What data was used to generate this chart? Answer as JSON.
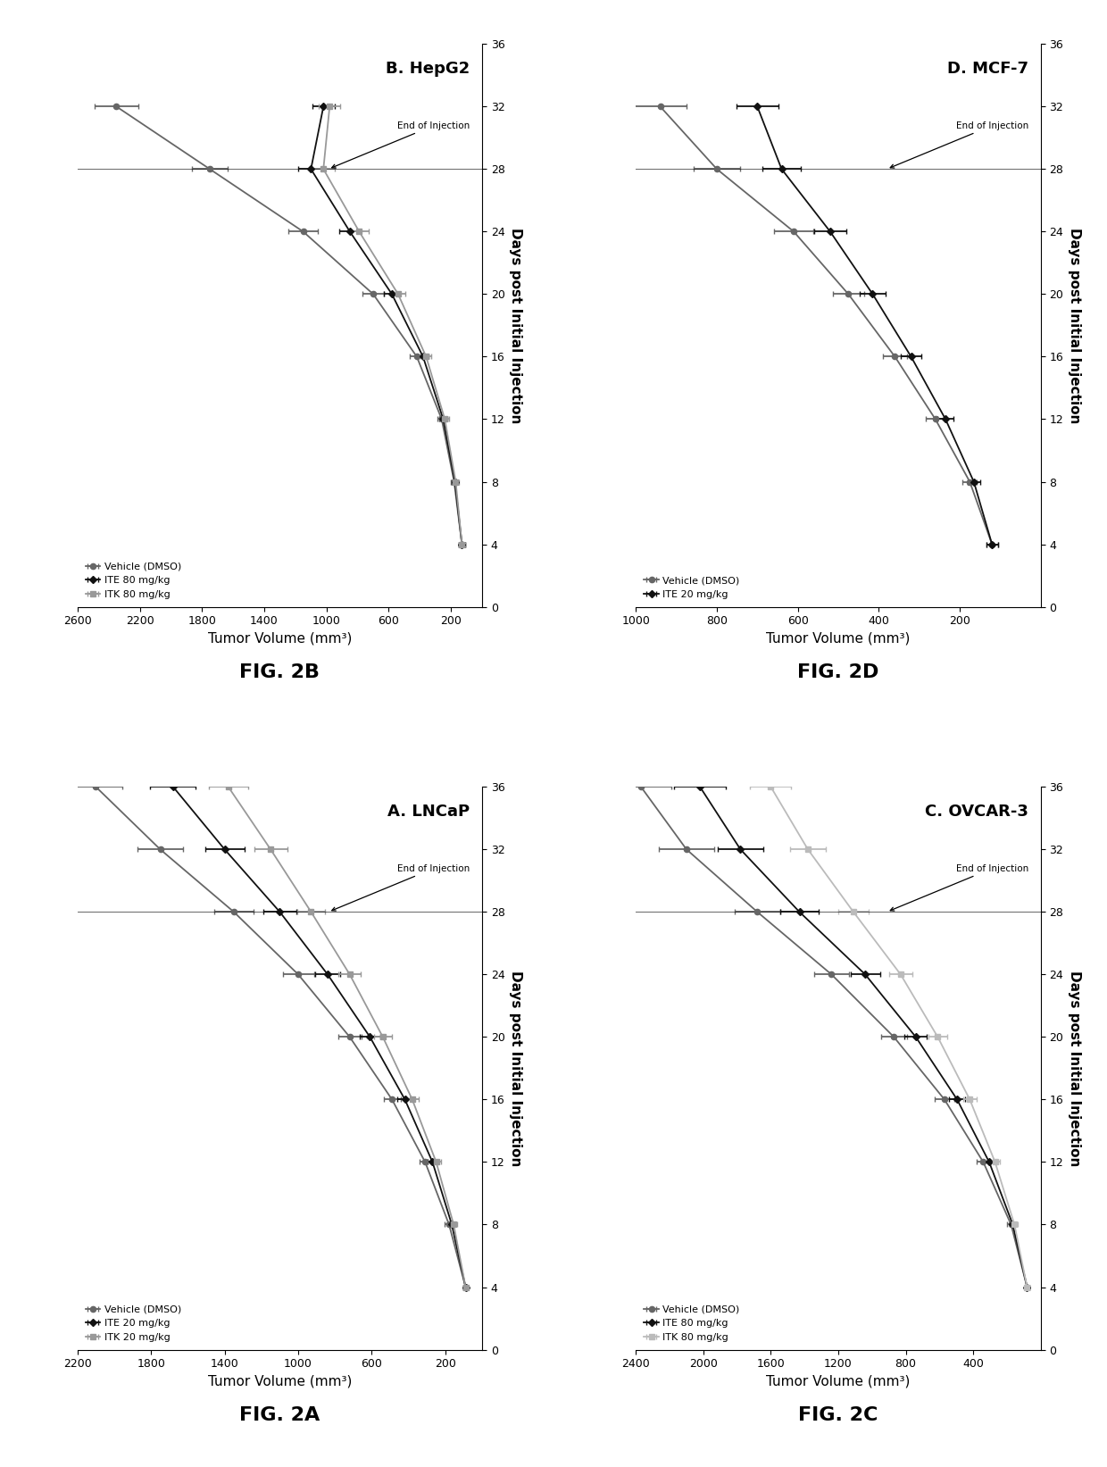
{
  "panels": [
    {
      "label": "B. HepG2",
      "fig_label": "FIG. 2B",
      "row": 0,
      "col": 0,
      "ylim": [
        0,
        2600
      ],
      "yticks": [
        200,
        600,
        1000,
        1400,
        1800,
        2200,
        2600
      ],
      "xlim": [
        0,
        36
      ],
      "xticks": [
        0,
        4,
        8,
        12,
        16,
        20,
        24,
        28,
        32,
        36
      ],
      "end_of_injection": 28,
      "series": [
        {
          "name": "Vehicle (DMSO)",
          "marker": "o",
          "color": "#666666",
          "linestyle": "-",
          "x": [
            4,
            8,
            12,
            16,
            20,
            24,
            28,
            32
          ],
          "y": [
            130,
            180,
            260,
            420,
            700,
            1150,
            1750,
            2350
          ],
          "yerr": [
            18,
            22,
            30,
            45,
            70,
            95,
            115,
            140
          ]
        },
        {
          "name": "ITE 80 mg/kg",
          "marker": "D",
          "color": "#111111",
          "linestyle": "-",
          "x": [
            4,
            8,
            12,
            16,
            20,
            24,
            28,
            32
          ],
          "y": [
            130,
            175,
            250,
            380,
            580,
            850,
            1100,
            1020
          ],
          "yerr": [
            18,
            20,
            27,
            37,
            52,
            68,
            82,
            72
          ]
        },
        {
          "name": "ITK 80 mg/kg",
          "marker": "s",
          "color": "#999999",
          "linestyle": "-",
          "x": [
            4,
            8,
            12,
            16,
            20,
            24,
            28,
            32
          ],
          "y": [
            130,
            170,
            240,
            360,
            540,
            790,
            1020,
            980
          ],
          "yerr": [
            18,
            19,
            25,
            34,
            48,
            62,
            74,
            68
          ]
        }
      ]
    },
    {
      "label": "D. MCF-7",
      "fig_label": "FIG. 2D",
      "row": 0,
      "col": 1,
      "ylim": [
        0,
        1000
      ],
      "yticks": [
        200,
        400,
        600,
        800,
        1000
      ],
      "xlim": [
        0,
        36
      ],
      "xticks": [
        0,
        4,
        8,
        12,
        16,
        20,
        24,
        28,
        32,
        36
      ],
      "end_of_injection": 28,
      "series": [
        {
          "name": "Vehicle (DMSO)",
          "marker": "o",
          "color": "#666666",
          "linestyle": "-",
          "x": [
            4,
            8,
            12,
            16,
            20,
            24,
            28,
            32
          ],
          "y": [
            120,
            175,
            260,
            360,
            475,
            610,
            800,
            940
          ],
          "yerr": [
            14,
            18,
            24,
            30,
            38,
            48,
            58,
            66
          ]
        },
        {
          "name": "ITE 20 mg/kg",
          "marker": "D",
          "color": "#111111",
          "linestyle": "-",
          "x": [
            4,
            8,
            12,
            16,
            20,
            24,
            28,
            32
          ],
          "y": [
            120,
            165,
            235,
            320,
            415,
            520,
            640,
            700
          ],
          "yerr": [
            14,
            16,
            20,
            26,
            33,
            40,
            48,
            52
          ]
        }
      ]
    },
    {
      "label": "A. LNCaP",
      "fig_label": "FIG. 2A",
      "row": 1,
      "col": 0,
      "ylim": [
        0,
        2200
      ],
      "yticks": [
        200,
        600,
        1000,
        1400,
        1800,
        2200
      ],
      "xlim": [
        0,
        36
      ],
      "xticks": [
        0,
        4,
        8,
        12,
        16,
        20,
        24,
        28,
        32,
        36
      ],
      "end_of_injection": 28,
      "series": [
        {
          "name": "Vehicle (DMSO)",
          "marker": "o",
          "color": "#666666",
          "linestyle": "-",
          "x": [
            4,
            8,
            12,
            16,
            20,
            24,
            28,
            32,
            36
          ],
          "y": [
            90,
            180,
            310,
            490,
            720,
            1000,
            1350,
            1750,
            2100
          ],
          "yerr": [
            13,
            22,
            32,
            46,
            64,
            85,
            105,
            125,
            145
          ]
        },
        {
          "name": "ITE 20 mg/kg",
          "marker": "D",
          "color": "#111111",
          "linestyle": "-",
          "x": [
            4,
            8,
            12,
            16,
            20,
            24,
            28,
            32,
            36
          ],
          "y": [
            90,
            165,
            270,
            420,
            610,
            840,
            1100,
            1400,
            1680
          ],
          "yerr": [
            13,
            20,
            28,
            40,
            55,
            70,
            88,
            107,
            124
          ]
        },
        {
          "name": "ITK 20 mg/kg",
          "marker": "s",
          "color": "#999999",
          "linestyle": "-",
          "x": [
            4,
            8,
            12,
            16,
            20,
            24,
            28,
            32,
            36
          ],
          "y": [
            90,
            155,
            250,
            380,
            540,
            720,
            930,
            1150,
            1380
          ],
          "yerr": [
            13,
            18,
            26,
            36,
            48,
            60,
            74,
            90,
            106
          ]
        }
      ]
    },
    {
      "label": "C. OVCAR-3",
      "fig_label": "FIG. 2C",
      "row": 1,
      "col": 1,
      "ylim": [
        0,
        2400
      ],
      "yticks": [
        400,
        800,
        1200,
        1600,
        2000,
        2400
      ],
      "xlim": [
        0,
        36
      ],
      "xticks": [
        0,
        4,
        8,
        12,
        16,
        20,
        24,
        28,
        32,
        36
      ],
      "end_of_injection": 28,
      "series": [
        {
          "name": "Vehicle (DMSO)",
          "marker": "o",
          "color": "#666666",
          "linestyle": "-",
          "x": [
            4,
            8,
            12,
            16,
            20,
            24,
            28,
            32,
            36
          ],
          "y": [
            80,
            175,
            340,
            570,
            870,
            1240,
            1680,
            2100,
            2370
          ],
          "yerr": [
            13,
            22,
            38,
            56,
            78,
            105,
            135,
            162,
            182
          ]
        },
        {
          "name": "ITE 80 mg/kg",
          "marker": "D",
          "color": "#111111",
          "linestyle": "-",
          "x": [
            4,
            8,
            12,
            16,
            20,
            24,
            28,
            32,
            36
          ],
          "y": [
            80,
            165,
            305,
            495,
            740,
            1040,
            1430,
            1780,
            2020
          ],
          "yerr": [
            13,
            20,
            34,
            49,
            67,
            88,
            115,
            137,
            155
          ]
        },
        {
          "name": "ITK 80 mg/kg",
          "marker": "s",
          "color": "#bbbbbb",
          "linestyle": "-",
          "x": [
            4,
            8,
            12,
            16,
            20,
            24,
            28,
            32,
            36
          ],
          "y": [
            80,
            155,
            270,
            420,
            610,
            830,
            1110,
            1380,
            1600
          ],
          "yerr": [
            13,
            18,
            28,
            40,
            54,
            70,
            88,
            108,
            122
          ]
        }
      ]
    }
  ],
  "xlabel": "Days post Initial Injection",
  "ylabel": "Tumor Volume (mm³)",
  "background_color": "#ffffff",
  "panel_title_fontsize": 13,
  "axis_label_fontsize": 11,
  "tick_fontsize": 9,
  "legend_fontsize": 8,
  "figlabel_fontsize": 16
}
